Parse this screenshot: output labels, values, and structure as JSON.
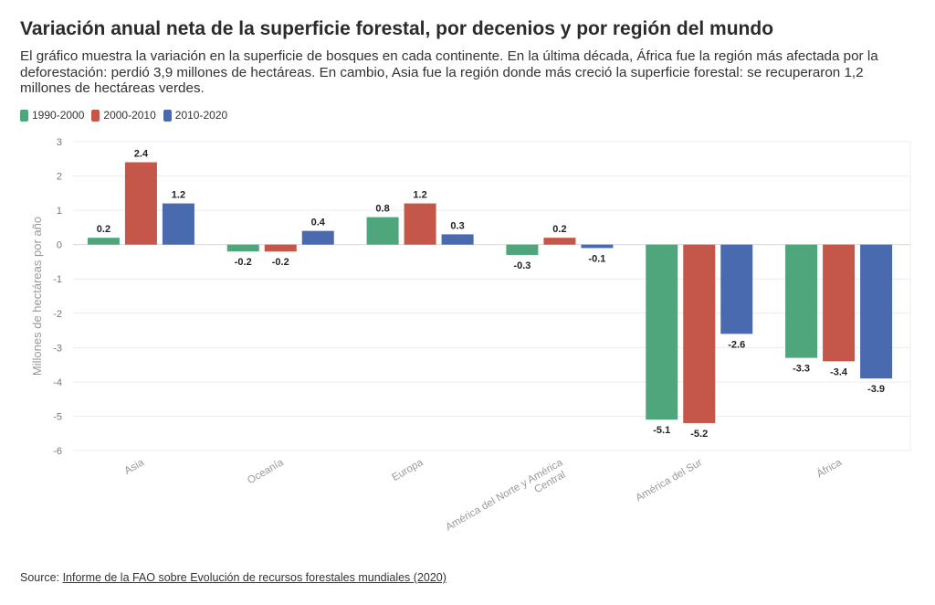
{
  "header": {
    "title": "Variación anual neta de la superficie forestal, por decenios y por región del mundo",
    "subtitle": "El gráfico muestra la variación en la superficie de bosques en cada continente. En la última década, África fue la región más afectada por la deforestación: perdió 3,9 millones de hectáreas. En cambio, Asia fue la región donde más creció la superficie forestal: se recuperaron 1,2 millones de hectáreas verdes."
  },
  "footer": {
    "source_prefix": "Source: ",
    "source_link": "Informe de la FAO sobre Evolución de recursos forestales mundiales (2020)"
  },
  "chart_data": {
    "type": "bar",
    "ylabel": "Millones de hectáreas por año",
    "xlabel": "",
    "ylim": [
      -6,
      3
    ],
    "yticks": [
      3,
      2,
      1,
      0,
      -1,
      -2,
      -3,
      -4,
      -5,
      -6
    ],
    "grid": true,
    "legend_position": "top-left",
    "categories": [
      "Asia",
      "Oceanía",
      "Europa",
      "América del Norte y América Central",
      "América del Sur",
      "África"
    ],
    "series": [
      {
        "name": "1990-2000",
        "color": "#4fa57c",
        "values": [
          0.2,
          -0.2,
          0.8,
          -0.3,
          -5.1,
          -3.3
        ],
        "labels": [
          "0.2",
          "-0.2",
          "0.8",
          "-0.3",
          "-5.1",
          "-3.3"
        ]
      },
      {
        "name": "2000-2010",
        "color": "#c4564a",
        "values": [
          2.4,
          -0.2,
          1.2,
          0.2,
          -5.2,
          -3.4
        ],
        "labels": [
          "2.4",
          "-0.2",
          "1.2",
          "0.2",
          "-5.2",
          "-3.4"
        ]
      },
      {
        "name": "2010-2020",
        "color": "#4a6ab0",
        "values": [
          1.2,
          0.4,
          0.3,
          -0.1,
          -2.6,
          -3.9
        ],
        "labels": [
          "1.2",
          "0.4",
          "0.3",
          "-0.1",
          "-2.6",
          "-3.9"
        ]
      }
    ]
  }
}
